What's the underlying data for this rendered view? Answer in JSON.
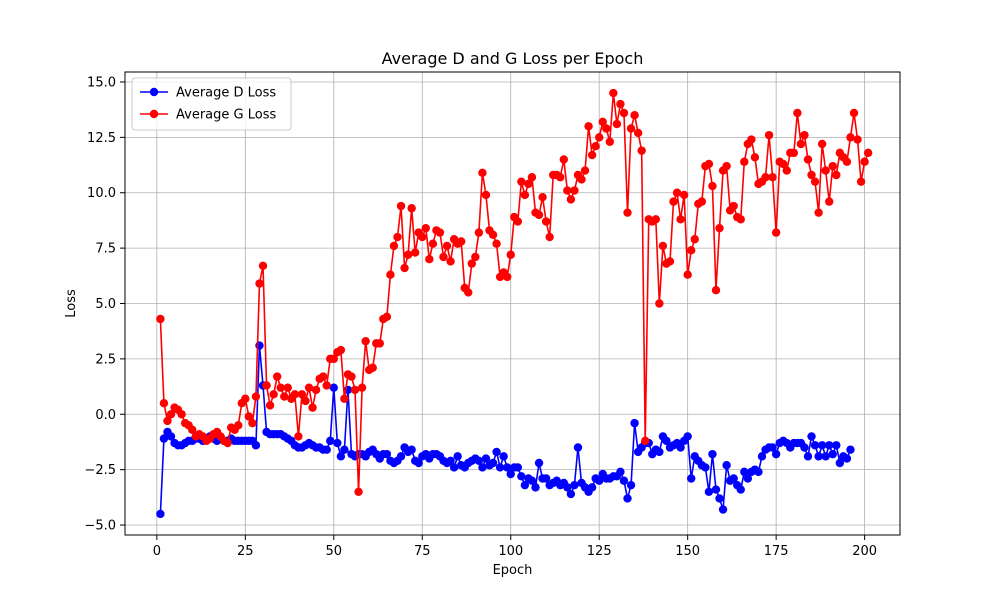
{
  "chart_data": {
    "type": "line",
    "title": "Average D and G Loss per Epoch",
    "xlabel": "Epoch",
    "ylabel": "Loss",
    "xlim": [
      -9,
      210
    ],
    "ylim": [
      -5.45,
      15.45
    ],
    "xticks": [
      0,
      25,
      50,
      75,
      100,
      125,
      150,
      175,
      200
    ],
    "yticks": [
      -5.0,
      -2.5,
      0.0,
      2.5,
      5.0,
      7.5,
      10.0,
      12.5,
      15.0
    ],
    "xtick_labels": [
      "0",
      "25",
      "50",
      "75",
      "100",
      "125",
      "150",
      "175",
      "200"
    ],
    "ytick_labels": [
      "−5.0",
      "−2.5",
      "0.0",
      "2.5",
      "5.0",
      "7.5",
      "10.0",
      "12.5",
      "15.0"
    ],
    "grid": true,
    "legend": "top-left",
    "series": [
      {
        "name": "Average D Loss",
        "color": "#0000ff",
        "marker": "circle",
        "x_start": 1,
        "values": [
          -4.5,
          -1.1,
          -0.8,
          -1.0,
          -1.3,
          -1.4,
          -1.4,
          -1.3,
          -1.2,
          -1.2,
          -1.1,
          -1.1,
          -1.2,
          -1.1,
          -1.0,
          -1.1,
          -1.2,
          -1.1,
          -1.2,
          -1.2,
          -1.1,
          -1.2,
          -1.2,
          -1.2,
          -1.2,
          -1.2,
          -1.2,
          -1.4,
          3.1,
          1.3,
          -0.8,
          -0.9,
          -0.9,
          -0.9,
          -0.9,
          -1.0,
          -1.1,
          -1.2,
          -1.4,
          -1.5,
          -1.5,
          -1.4,
          -1.3,
          -1.4,
          -1.5,
          -1.5,
          -1.6,
          -1.6,
          -1.2,
          1.2,
          -1.3,
          -1.9,
          -1.6,
          1.1,
          -1.8,
          -1.9,
          -1.8,
          -1.8,
          -1.9,
          -1.7,
          -1.6,
          -1.8,
          -2.0,
          -1.8,
          -1.8,
          -2.1,
          -2.2,
          -2.1,
          -1.9,
          -1.5,
          -1.7,
          -1.6,
          -2.1,
          -2.2,
          -1.9,
          -1.8,
          -2.0,
          -1.8,
          -1.8,
          -1.9,
          -2.1,
          -2.2,
          -2.1,
          -2.4,
          -1.9,
          -2.3,
          -2.4,
          -2.2,
          -2.1,
          -2.0,
          -2.1,
          -2.4,
          -2.0,
          -2.3,
          -2.2,
          -1.7,
          -2.4,
          -1.9,
          -2.4,
          -2.7,
          -2.4,
          -2.4,
          -2.8,
          -3.2,
          -2.9,
          -3.0,
          -3.3,
          -2.2,
          -2.9,
          -2.9,
          -3.2,
          -3.1,
          -3.0,
          -3.2,
          -3.1,
          -3.3,
          -3.6,
          -3.2,
          -1.5,
          -3.1,
          -3.3,
          -3.5,
          -3.3,
          -2.9,
          -3.0,
          -2.7,
          -2.9,
          -2.9,
          -2.8,
          -2.8,
          -2.6,
          -3.0,
          -3.8,
          -3.2,
          -0.4,
          -1.7,
          -1.5,
          -1.3,
          -1.3,
          -1.8,
          -1.6,
          -1.7,
          -1.0,
          -1.2,
          -1.5,
          -1.4,
          -1.3,
          -1.5,
          -1.2,
          -1.0,
          -2.9,
          -1.9,
          -2.1,
          -2.3,
          -2.4,
          -3.5,
          -1.8,
          -3.4,
          -3.8,
          -4.3,
          -2.3,
          -3.0,
          -2.9,
          -3.2,
          -3.4,
          -2.6,
          -2.9,
          -2.6,
          -2.5,
          -2.6,
          -1.9,
          -1.6,
          -1.5,
          -1.5,
          -1.8,
          -1.3,
          -1.2,
          -1.3,
          -1.5,
          -1.3,
          -1.3,
          -1.3,
          -1.5,
          -1.9,
          -1.0,
          -1.4,
          -1.9,
          -1.4,
          -1.9,
          -1.4,
          -1.8,
          -1.4,
          -2.2,
          -1.9,
          -2.0,
          -1.6
        ]
      },
      {
        "name": "Average G Loss",
        "color": "#ff0000",
        "marker": "circle",
        "x_start": 1,
        "values": [
          4.3,
          0.5,
          -0.3,
          0.0,
          0.3,
          0.2,
          0.0,
          -0.4,
          -0.5,
          -0.7,
          -1.0,
          -0.9,
          -1.0,
          -1.2,
          -1.1,
          -0.9,
          -0.8,
          -1.0,
          -1.2,
          -1.3,
          -0.6,
          -0.7,
          -0.5,
          0.5,
          0.7,
          -0.1,
          -0.4,
          0.8,
          5.9,
          6.7,
          1.3,
          0.4,
          0.9,
          1.7,
          1.2,
          0.8,
          1.2,
          0.7,
          0.9,
          -1.0,
          0.9,
          0.6,
          1.2,
          0.3,
          1.1,
          1.6,
          1.7,
          1.3,
          2.5,
          2.5,
          2.8,
          2.9,
          0.7,
          1.8,
          1.7,
          1.1,
          -3.5,
          1.2,
          3.3,
          2.0,
          2.1,
          3.2,
          3.2,
          4.3,
          4.4,
          6.3,
          7.6,
          8.0,
          9.4,
          6.6,
          7.2,
          9.3,
          7.3,
          8.2,
          8.0,
          8.4,
          7.0,
          7.7,
          8.3,
          8.2,
          7.1,
          7.6,
          6.9,
          7.9,
          7.7,
          7.8,
          5.7,
          5.5,
          6.8,
          7.1,
          8.2,
          10.9,
          9.9,
          8.3,
          8.1,
          7.7,
          6.2,
          6.4,
          6.2,
          7.2,
          8.9,
          8.7,
          10.5,
          9.9,
          10.4,
          10.7,
          9.1,
          9.0,
          9.8,
          8.7,
          8.0,
          10.8,
          10.8,
          10.7,
          11.5,
          10.1,
          9.7,
          10.1,
          10.8,
          10.6,
          11.0,
          13.0,
          11.7,
          12.1,
          12.5,
          13.2,
          12.9,
          12.3,
          14.5,
          13.1,
          14.0,
          13.6,
          9.1,
          12.9,
          13.5,
          12.7,
          11.9,
          -1.2,
          8.8,
          8.7,
          8.8,
          5.0,
          7.6,
          6.8,
          6.9,
          9.6,
          10.0,
          8.8,
          9.9,
          6.3,
          7.4,
          7.9,
          9.5,
          9.6,
          11.2,
          11.3,
          10.3,
          5.6,
          8.4,
          11.0,
          11.2,
          9.2,
          9.4,
          8.9,
          8.8,
          11.4,
          12.2,
          12.4,
          11.6,
          10.4,
          10.5,
          10.7,
          12.6,
          10.7,
          8.2,
          11.4,
          11.3,
          11.0,
          11.8,
          11.8,
          13.6,
          12.2,
          12.6,
          11.5,
          10.8,
          10.5,
          9.1,
          12.2,
          11.0,
          9.6,
          11.2,
          10.8,
          11.8,
          11.6,
          11.4,
          12.5,
          13.6,
          12.4,
          10.5,
          11.4,
          11.8
        ]
      }
    ]
  }
}
